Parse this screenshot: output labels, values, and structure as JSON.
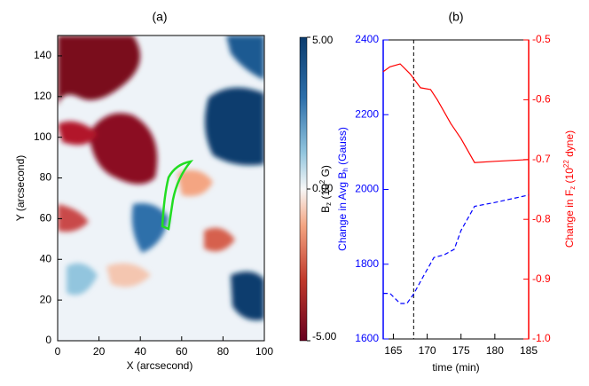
{
  "chart_data": [
    {
      "type": "heatmap",
      "title": "(a)",
      "x_label": "X (arcsecond)",
      "y_label": "Y (arcsecond)",
      "xlim": [
        0,
        100
      ],
      "ylim": [
        0,
        150
      ],
      "xticks": [
        0,
        20,
        40,
        60,
        80,
        100
      ],
      "yticks": [
        0,
        20,
        40,
        60,
        80,
        100,
        120,
        140
      ],
      "colorbar": {
        "label": [
          "B",
          "z",
          " (10",
          "2",
          " G)"
        ],
        "lim": [
          -5,
          5
        ],
        "ticks": [
          {
            "value": -5,
            "label": "-5.00"
          },
          {
            "value": 0,
            "label": "0.00"
          },
          {
            "value": 5,
            "label": "5.00"
          }
        ]
      }
    },
    {
      "type": "line",
      "title": "(b)",
      "x_label": "time (min)",
      "y_label": [
        "Change in Avg B",
        "h",
        " (Gauss)"
      ],
      "y2_label": [
        "Change in F",
        "z",
        " (10",
        "22",
        " dyne)"
      ],
      "xlim": [
        163.5,
        185
      ],
      "xticks": [
        165,
        170,
        175,
        180,
        185
      ],
      "ylim": [
        1600,
        2400
      ],
      "yticks": [
        1600,
        1800,
        2000,
        2200,
        2400
      ],
      "y_color": "#0000ff",
      "y2lim": [
        -1,
        -0.5
      ],
      "y2ticks": [
        {
          "value": -1,
          "label": "-1.0"
        },
        -0.9,
        -0.8,
        -0.7,
        -0.6,
        -0.5
      ],
      "y2_color": "#ff0000",
      "vline": 168,
      "series": [
        {
          "color": "#0000ff",
          "dashed": true,
          "axis": "y",
          "x": [
            163.5,
            164.5,
            166,
            167,
            168,
            169.5,
            171,
            172.5,
            174,
            175,
            177,
            180,
            185
          ],
          "values": [
            1722,
            1722,
            1695,
            1695,
            1720,
            1770,
            1818,
            1825,
            1840,
            1890,
            1955,
            1965,
            1985
          ]
        },
        {
          "color": "#ff0000",
          "dashed": false,
          "axis": "y2",
          "x": [
            163.5,
            164.5,
            166,
            167.5,
            169,
            170.5,
            171.5,
            173.5,
            175,
            177,
            180,
            185
          ],
          "values": [
            -0.553,
            -0.545,
            -0.54,
            -0.557,
            -0.58,
            -0.583,
            -0.6,
            -0.64,
            -0.665,
            -0.705,
            -0.703,
            -0.7
          ]
        }
      ]
    }
  ]
}
